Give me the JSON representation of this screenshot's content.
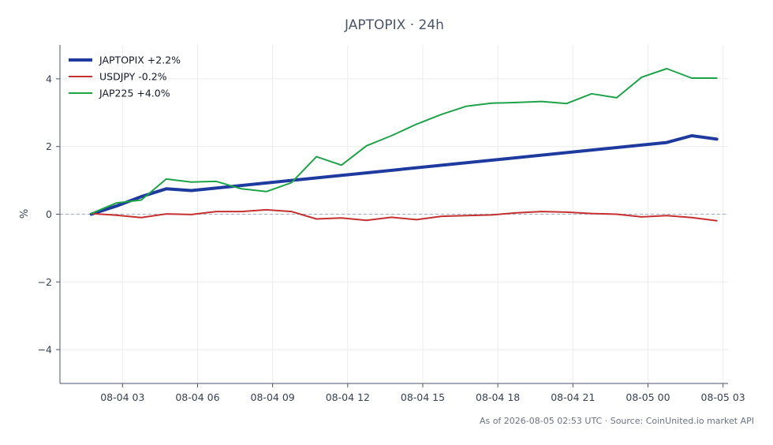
{
  "chart_data": {
    "type": "line",
    "title": "JAPTOPIX · 24h",
    "xlabel": "",
    "ylabel": "%",
    "xlim": [
      0.5,
      27.2
    ],
    "ylim": [
      -5,
      5
    ],
    "yticks": [
      -4,
      -2,
      0,
      2,
      4
    ],
    "ytick_labels": [
      "−4",
      "−2",
      "0",
      "2",
      "4"
    ],
    "xticks": [
      3,
      6,
      9,
      12,
      15,
      18,
      21,
      24,
      27
    ],
    "xtick_labels": [
      "08-04 03",
      "08-04 06",
      "08-04 09",
      "08-04 12",
      "08-04 15",
      "08-04 18",
      "08-04 21",
      "08-05 00",
      "08-05 03"
    ],
    "x_unit": "hours since 08-04 00:00",
    "grid": true,
    "zero_line": true,
    "legend": "top-left",
    "series": [
      {
        "name": "JAPTOPIX +2.2%",
        "color": "#1e3a9e",
        "width": 4,
        "x": [
          1.75,
          2.75,
          3.75,
          4.75,
          5.75,
          24.75,
          25.75,
          26.75
        ],
        "y": [
          0.0,
          0.24,
          0.52,
          0.75,
          0.7,
          2.12,
          2.32,
          2.22
        ]
      },
      {
        "name": "USDJPY -0.2%",
        "color": "#c53030",
        "width": 2,
        "x": [
          1.75,
          2.75,
          3.75,
          4.75,
          5.75,
          6.75,
          7.75,
          8.75,
          9.75,
          10.75,
          11.75,
          12.75,
          13.75,
          14.75,
          15.75,
          16.75,
          17.75,
          18.75,
          19.75,
          20.75,
          21.75,
          22.75,
          23.75,
          24.75,
          25.75,
          26.75
        ],
        "y": [
          0.02,
          -0.03,
          -0.1,
          0.01,
          -0.01,
          0.08,
          0.08,
          0.13,
          0.08,
          -0.14,
          -0.11,
          -0.18,
          -0.09,
          -0.16,
          -0.06,
          -0.04,
          -0.02,
          0.04,
          0.08,
          0.06,
          0.02,
          0.0,
          -0.08,
          -0.04,
          -0.1,
          -0.19
        ]
      },
      {
        "name": "JAP225 +4.0%",
        "color": "#1fa24a",
        "width": 2,
        "x": [
          1.75,
          2.75,
          3.75,
          4.75,
          5.75,
          6.75,
          7.75,
          8.75,
          9.75,
          10.75,
          11.75,
          12.75,
          13.75,
          14.75,
          15.75,
          16.75,
          17.75,
          18.75,
          19.75,
          20.75,
          21.75,
          22.75,
          23.75,
          24.75,
          25.75,
          26.75
        ],
        "y": [
          0.02,
          0.33,
          0.42,
          1.04,
          0.95,
          0.97,
          0.75,
          0.67,
          0.93,
          1.7,
          1.45,
          2.02,
          2.32,
          2.66,
          2.95,
          3.19,
          3.28,
          3.3,
          3.33,
          3.27,
          3.56,
          3.44,
          4.05,
          4.3,
          4.02,
          4.02
        ]
      }
    ]
  },
  "footer": "As of 2026-08-05 02:53 UTC · Source: CoinUnited.io market API"
}
